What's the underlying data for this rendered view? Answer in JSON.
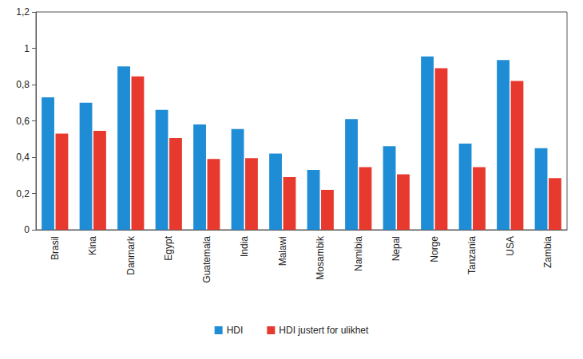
{
  "chart_data": {
    "type": "bar",
    "categories": [
      "Brasil",
      "Kina",
      "Danmark",
      "Egypt",
      "Guatemala",
      "India",
      "Malawi",
      "Mosambik",
      "Namibia",
      "Nepal",
      "Norge",
      "Tanzania",
      "USA",
      "Zambia"
    ],
    "series": [
      {
        "name": "HDI",
        "color": "#1f8dd6",
        "values": [
          0.73,
          0.7,
          0.9,
          0.66,
          0.58,
          0.555,
          0.42,
          0.33,
          0.61,
          0.46,
          0.955,
          0.475,
          0.935,
          0.45
        ]
      },
      {
        "name": "HDI justert for ulikhet",
        "color": "#e8392f",
        "values": [
          0.53,
          0.545,
          0.845,
          0.505,
          0.39,
          0.395,
          0.29,
          0.22,
          0.345,
          0.305,
          0.89,
          0.345,
          0.82,
          0.285
        ]
      }
    ],
    "ylim": [
      0,
      1.2
    ],
    "yticks": [
      0,
      {
        "value": 0.2,
        "label": "0,2"
      },
      {
        "value": 0.4,
        "label": "0,4"
      },
      {
        "value": 0.6,
        "label": "0,6"
      },
      {
        "value": 0.8,
        "label": "0,8"
      },
      1,
      {
        "value": 1.2,
        "label": "1,2"
      }
    ],
    "grid": false,
    "legend": "bottom"
  }
}
